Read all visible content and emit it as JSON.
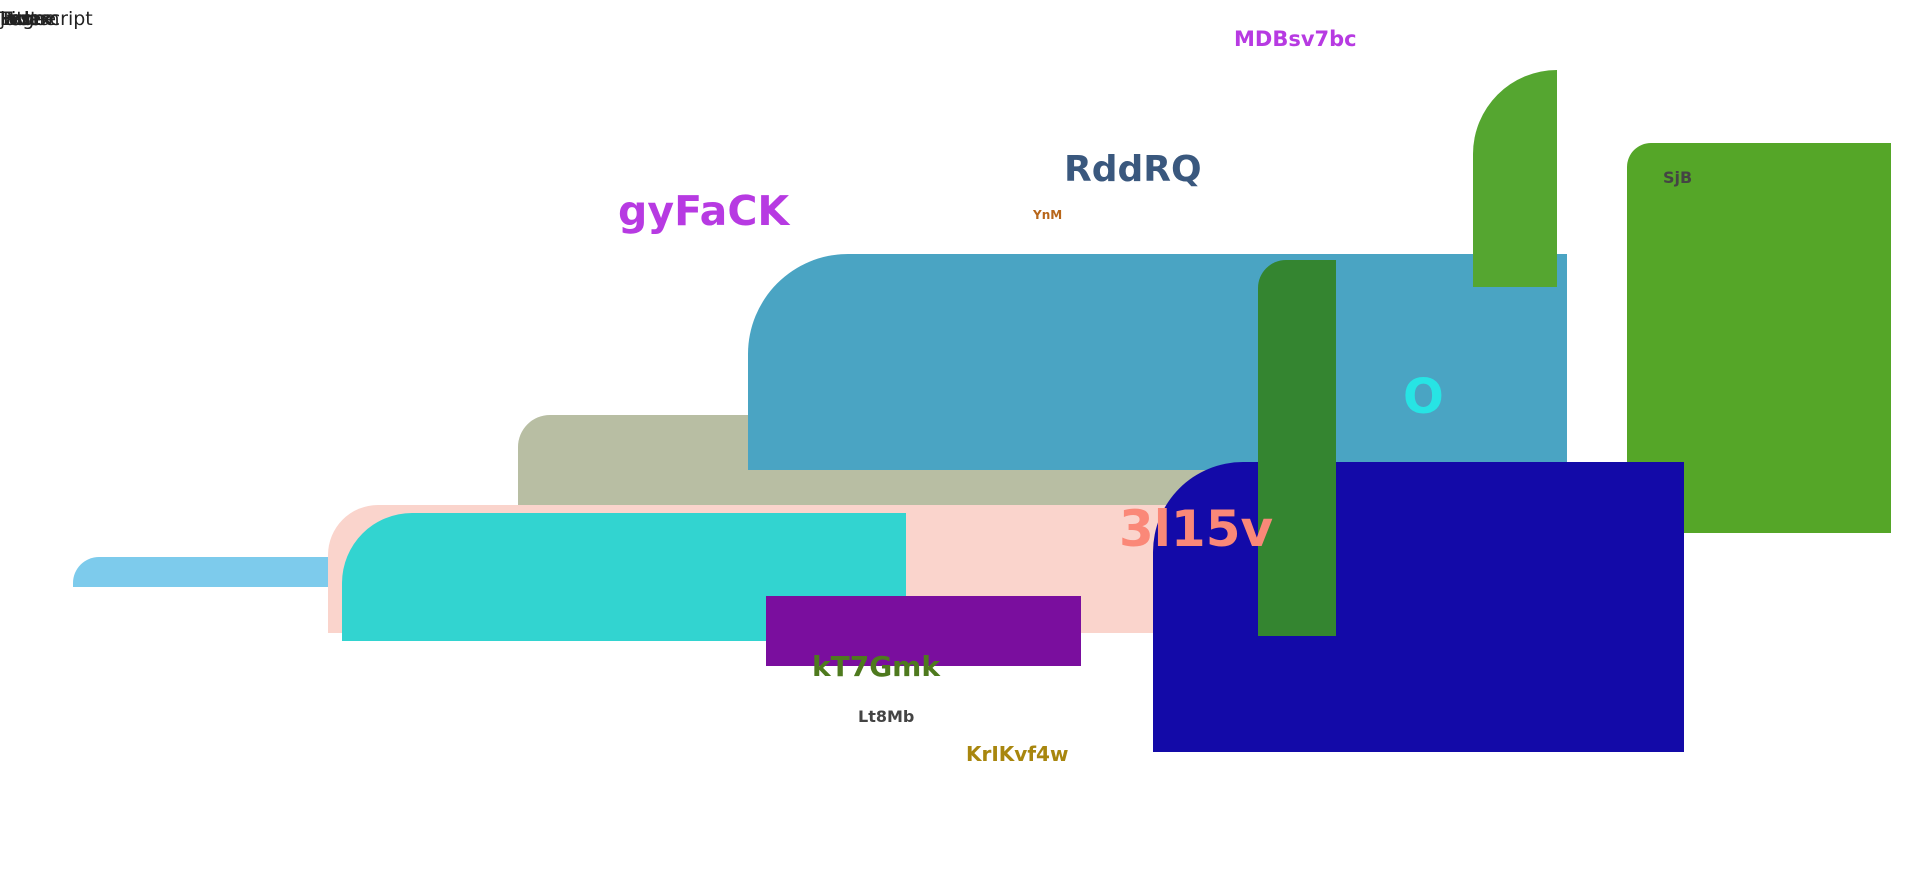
{
  "overlapping_text": [
    "javascript",
    "Foo",
    "Home",
    "Page",
    "Title",
    "Test",
    "Lorem",
    "Index"
  ],
  "labels": {
    "mdbsv7bc": "MDBsv7bc",
    "rddrq": "RddRQ",
    "gyfack": "gyFaCK",
    "ynm": "YnM",
    "sjb": "SjB",
    "o": "O",
    "3l15v": "3l15v",
    "kt7gmk": "kT7Gmk",
    "lt8mb": "Lt8Mb",
    "krikvf4w": "KrIKvf4w"
  },
  "colors": {
    "light_blue_bar": "#7dcbec",
    "khaki_block": "#b8bea3",
    "steel_blue_block": "#4aa4c3",
    "pink_block": "#fad4cc",
    "cyan_block": "#32d4d0",
    "purple_bar": "#7a0e9e",
    "navy_block": "#130aa8",
    "dark_green_column": "#348530",
    "green_tab": "#55a630",
    "green_panel": "#55a628",
    "magenta_text": "#b73ae2",
    "slate_text": "#3a587e",
    "olive_text": "#4e7a1e",
    "gold_text": "#a8860e",
    "salmon_text": "#fa8878",
    "aqua_text": "#27e4e4",
    "grey_text": "#444444",
    "orange_text": "#b8661a"
  }
}
